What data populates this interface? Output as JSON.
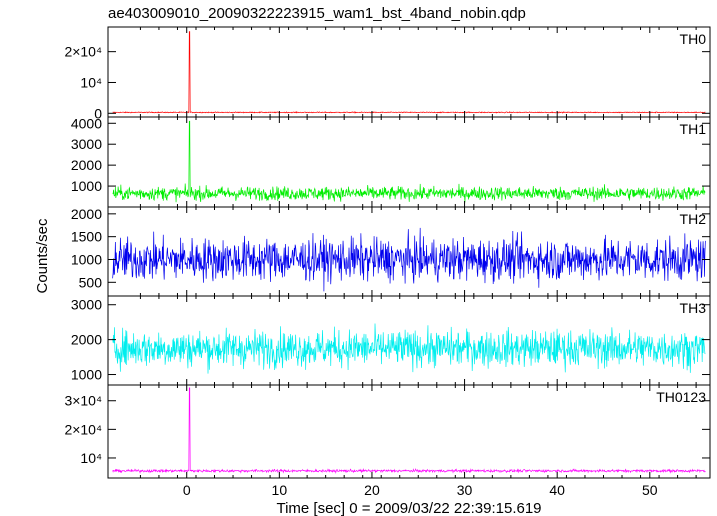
{
  "title": "ae403009010_20090322223915_wam1_bst_4band_nobin.qdp",
  "ylabel": "Counts/sec",
  "xlabel": "Time [sec] 0 = 2009/03/22 22:39:15.619",
  "chart_data": {
    "type": "line",
    "title": "ae403009010_20090322223915_wam1_bst_4band_nobin.qdp",
    "xlabel": "Time [sec] 0 = 2009/03/22 22:39:15.619",
    "ylabel": "Counts/sec",
    "xlim": [
      -8.5,
      56.5
    ],
    "x_ticks": [
      0,
      10,
      20,
      30,
      40,
      50
    ],
    "x_start": -8,
    "x_end": 56,
    "grid": false,
    "panels": [
      {
        "name": "TH0",
        "color": "#ff0000",
        "ylim": [
          -1200,
          28000
        ],
        "y_ticks": [
          0,
          10000,
          20000
        ],
        "y_tick_labels": [
          "0",
          "10⁴",
          "2×10⁴"
        ],
        "baseline": 300,
        "noise": 150,
        "spike": {
          "x": 0.3,
          "peak": 26500
        }
      },
      {
        "name": "TH1",
        "color": "#00ee00",
        "ylim": [
          0,
          4300
        ],
        "y_ticks": [
          1000,
          2000,
          3000,
          4000
        ],
        "y_tick_labels": [
          "1000",
          "2000",
          "3000",
          "4000"
        ],
        "baseline": 650,
        "noise": 320,
        "spike": {
          "x": 0.3,
          "peak": 4100
        }
      },
      {
        "name": "TH2",
        "color": "#0000ee",
        "ylim": [
          200,
          2150
        ],
        "y_ticks": [
          500,
          1000,
          1500,
          2000
        ],
        "y_tick_labels": [
          "500",
          "1000",
          "1500",
          "2000"
        ],
        "baseline": 1000,
        "noise": 460,
        "spike": null
      },
      {
        "name": "TH3",
        "color": "#00eeee",
        "ylim": [
          700,
          3250
        ],
        "y_ticks": [
          1000,
          2000,
          3000
        ],
        "y_tick_labels": [
          "1000",
          "2000",
          "3000"
        ],
        "baseline": 1750,
        "noise": 520,
        "spike": null
      },
      {
        "name": "TH0123",
        "color": "#ff00ff",
        "ylim": [
          3000,
          35500
        ],
        "y_ticks": [
          10000,
          20000,
          30000
        ],
        "y_tick_labels": [
          "10⁴",
          "2×10⁴",
          "3×10⁴"
        ],
        "baseline": 5500,
        "noise": 450,
        "spike": {
          "x": 0.3,
          "peak": 34500
        }
      }
    ]
  }
}
